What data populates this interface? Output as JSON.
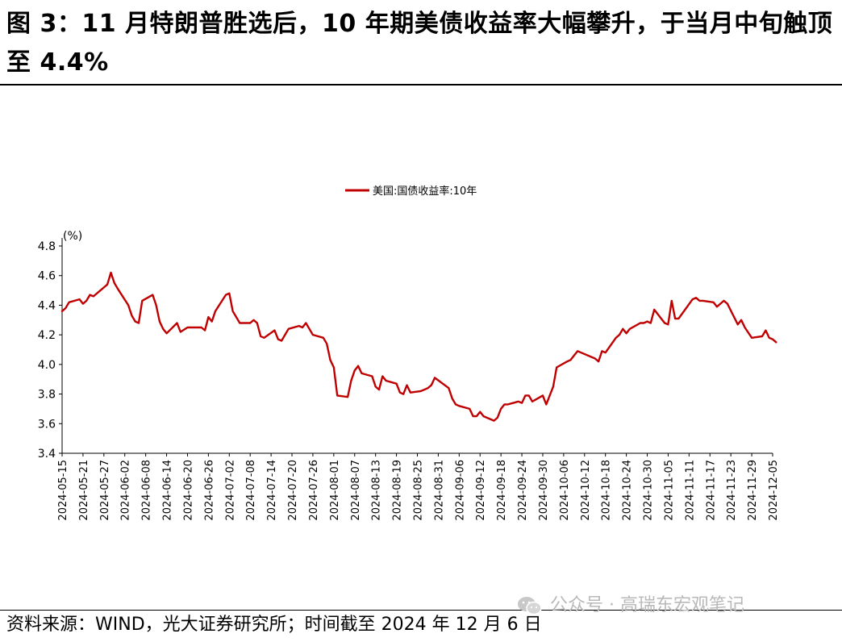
{
  "title": "图 3：11 月特朗普胜选后，10 年期美债收益率大幅攀升，于当月中旬触顶至 4.4%",
  "source": "资料来源：WIND，光大证券研究所；时间截至 2024 年 12 月 6 日",
  "watermark": {
    "icon": "wechat-icon",
    "text": "公众号 · 高瑞东宏观笔记"
  },
  "chart_data": {
    "type": "line",
    "unit_label": "(%)",
    "legend": "top-center",
    "grid": false,
    "ylim": [
      3.4,
      4.8
    ],
    "yticks": [
      "3.4",
      "3.6",
      "3.8",
      "4.0",
      "4.2",
      "4.4",
      "4.6",
      "4.8"
    ],
    "xticks": [
      "2024-05-15",
      "2024-05-21",
      "2024-05-27",
      "2024-06-02",
      "2024-06-08",
      "2024-06-14",
      "2024-06-20",
      "2024-06-26",
      "2024-07-02",
      "2024-07-08",
      "2024-07-14",
      "2024-07-20",
      "2024-07-26",
      "2024-08-01",
      "2024-08-07",
      "2024-08-13",
      "2024-08-19",
      "2024-08-25",
      "2024-08-31",
      "2024-09-06",
      "2024-09-12",
      "2024-09-18",
      "2024-09-24",
      "2024-09-30",
      "2024-10-06",
      "2024-10-12",
      "2024-10-18",
      "2024-10-24",
      "2024-10-30",
      "2024-11-05",
      "2024-11-11",
      "2024-11-17",
      "2024-11-23",
      "2024-11-29",
      "2024-12-05"
    ],
    "series": [
      {
        "name": "美国:国债收益率:10年",
        "color": "#c00000",
        "x": [
          "2024-05-15",
          "2024-05-16",
          "2024-05-17",
          "2024-05-20",
          "2024-05-21",
          "2024-05-22",
          "2024-05-23",
          "2024-05-24",
          "2024-05-28",
          "2024-05-29",
          "2024-05-30",
          "2024-05-31",
          "2024-06-03",
          "2024-06-04",
          "2024-06-05",
          "2024-06-06",
          "2024-06-07",
          "2024-06-10",
          "2024-06-11",
          "2024-06-12",
          "2024-06-13",
          "2024-06-14",
          "2024-06-17",
          "2024-06-18",
          "2024-06-20",
          "2024-06-21",
          "2024-06-24",
          "2024-06-25",
          "2024-06-26",
          "2024-06-27",
          "2024-06-28",
          "2024-07-01",
          "2024-07-02",
          "2024-07-03",
          "2024-07-05",
          "2024-07-08",
          "2024-07-09",
          "2024-07-10",
          "2024-07-11",
          "2024-07-12",
          "2024-07-15",
          "2024-07-16",
          "2024-07-17",
          "2024-07-18",
          "2024-07-19",
          "2024-07-22",
          "2024-07-23",
          "2024-07-24",
          "2024-07-25",
          "2024-07-26",
          "2024-07-29",
          "2024-07-30",
          "2024-07-31",
          "2024-08-01",
          "2024-08-02",
          "2024-08-05",
          "2024-08-06",
          "2024-08-07",
          "2024-08-08",
          "2024-08-09",
          "2024-08-12",
          "2024-08-13",
          "2024-08-14",
          "2024-08-15",
          "2024-08-16",
          "2024-08-19",
          "2024-08-20",
          "2024-08-21",
          "2024-08-22",
          "2024-08-23",
          "2024-08-26",
          "2024-08-27",
          "2024-08-28",
          "2024-08-29",
          "2024-08-30",
          "2024-09-03",
          "2024-09-04",
          "2024-09-05",
          "2024-09-06",
          "2024-09-09",
          "2024-09-10",
          "2024-09-11",
          "2024-09-12",
          "2024-09-13",
          "2024-09-16",
          "2024-09-17",
          "2024-09-18",
          "2024-09-19",
          "2024-09-20",
          "2024-09-23",
          "2024-09-24",
          "2024-09-25",
          "2024-09-26",
          "2024-09-27",
          "2024-09-30",
          "2024-10-01",
          "2024-10-02",
          "2024-10-03",
          "2024-10-04",
          "2024-10-07",
          "2024-10-08",
          "2024-10-09",
          "2024-10-10",
          "2024-10-11",
          "2024-10-15",
          "2024-10-16",
          "2024-10-17",
          "2024-10-18",
          "2024-10-21",
          "2024-10-22",
          "2024-10-23",
          "2024-10-24",
          "2024-10-25",
          "2024-10-28",
          "2024-10-29",
          "2024-10-30",
          "2024-10-31",
          "2024-11-01",
          "2024-11-04",
          "2024-11-05",
          "2024-11-06",
          "2024-11-07",
          "2024-11-08",
          "2024-11-12",
          "2024-11-13",
          "2024-11-14",
          "2024-11-15",
          "2024-11-18",
          "2024-11-19",
          "2024-11-20",
          "2024-11-21",
          "2024-11-22",
          "2024-11-25",
          "2024-11-26",
          "2024-11-27",
          "2024-11-29",
          "2024-12-02",
          "2024-12-03",
          "2024-12-04",
          "2024-12-05",
          "2024-12-06"
        ],
        "y": [
          4.36,
          4.38,
          4.42,
          4.44,
          4.41,
          4.43,
          4.47,
          4.46,
          4.54,
          4.62,
          4.55,
          4.51,
          4.4,
          4.33,
          4.29,
          4.28,
          4.43,
          4.47,
          4.4,
          4.29,
          4.24,
          4.21,
          4.28,
          4.22,
          4.25,
          4.25,
          4.25,
          4.23,
          4.32,
          4.29,
          4.36,
          4.47,
          4.48,
          4.36,
          4.28,
          4.28,
          4.3,
          4.28,
          4.19,
          4.18,
          4.23,
          4.17,
          4.16,
          4.2,
          4.24,
          4.26,
          4.25,
          4.28,
          4.24,
          4.2,
          4.18,
          4.14,
          4.03,
          3.98,
          3.79,
          3.78,
          3.89,
          3.96,
          3.99,
          3.94,
          3.92,
          3.85,
          3.83,
          3.92,
          3.89,
          3.87,
          3.81,
          3.8,
          3.86,
          3.81,
          3.82,
          3.83,
          3.84,
          3.86,
          3.91,
          3.84,
          3.77,
          3.73,
          3.72,
          3.7,
          3.65,
          3.65,
          3.68,
          3.65,
          3.62,
          3.64,
          3.7,
          3.73,
          3.73,
          3.75,
          3.74,
          3.79,
          3.79,
          3.75,
          3.79,
          3.73,
          3.79,
          3.85,
          3.98,
          4.02,
          4.03,
          4.06,
          4.09,
          4.08,
          4.04,
          4.02,
          4.09,
          4.08,
          4.18,
          4.2,
          4.24,
          4.21,
          4.24,
          4.28,
          4.28,
          4.29,
          4.28,
          4.37,
          4.28,
          4.27,
          4.43,
          4.31,
          4.31,
          4.44,
          4.45,
          4.43,
          4.43,
          4.42,
          4.39,
          4.41,
          4.43,
          4.41,
          4.27,
          4.3,
          4.25,
          4.18,
          4.19,
          4.23,
          4.18,
          4.17,
          4.15
        ]
      }
    ]
  }
}
